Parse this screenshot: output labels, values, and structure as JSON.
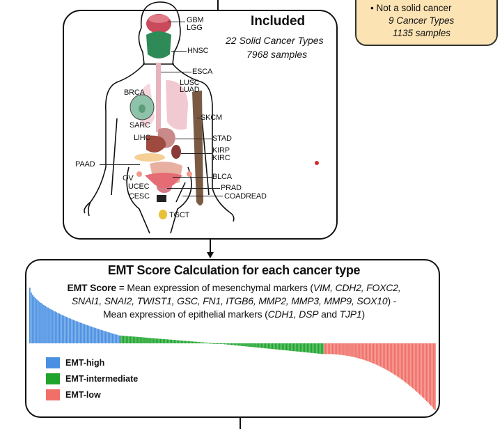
{
  "excluded": {
    "line1": "• Not a solid cancer",
    "line2": "9 Cancer Types",
    "line3": "1135 samples"
  },
  "included": {
    "title": "Included",
    "line1": "22 Solid Cancer Types",
    "line2": "7968 samples"
  },
  "cancer_labels": [
    "GBM",
    "LGG",
    "HNSC",
    "ESCA",
    "LUSC",
    "LUAD",
    "BRCA",
    "SKCM",
    "SARC",
    "LIHC",
    "STAD",
    "KIRP",
    "KIRC",
    "PAAD",
    "BLCA",
    "OV",
    "UCEC",
    "PRAD",
    "CESC",
    "COADREAD",
    "TGCT"
  ],
  "emt": {
    "title": "EMT Score Calculation for each cancer type",
    "score_bold": "EMT Score",
    "line1_rest": " = Mean expression of mesenchymal markers (",
    "line1_genes": "VIM, CDH2, FOXC2,",
    "line2_genes": "SNAI1, SNAI2, TWIST1, GSC, FN1, ITGB6, MMP2, MMP3, MMP9, SOX10",
    "line2_end": ") -",
    "line3_start": "Mean expression of epithelial markers (",
    "line3_genes": "CDH1, DSP",
    "line3_and": " and ",
    "line3_gene2": "TJP1",
    "line3_end": ")"
  },
  "legend": [
    {
      "label": "EMT-high",
      "color": "#4a90e2"
    },
    {
      "label": "EMT-intermediate",
      "color": "#1fa52e"
    },
    {
      "label": "EMT-low",
      "color": "#f07068"
    }
  ],
  "colors": {
    "high": "#4a90e2",
    "mid": "#1fa52e",
    "low": "#f07068",
    "excluded_bg": "#fbe3b3"
  },
  "chart_data": {
    "type": "bar",
    "series": [
      {
        "name": "EMT-high",
        "start": 1.0,
        "end": 0.14,
        "count": 65
      },
      {
        "name": "EMT-intermediate",
        "start": 0.14,
        "end": -0.16,
        "count": 145
      },
      {
        "name": "EMT-low",
        "start": -0.16,
        "end": -1.0,
        "count": 80
      }
    ],
    "ylim": [
      -1,
      1
    ]
  }
}
